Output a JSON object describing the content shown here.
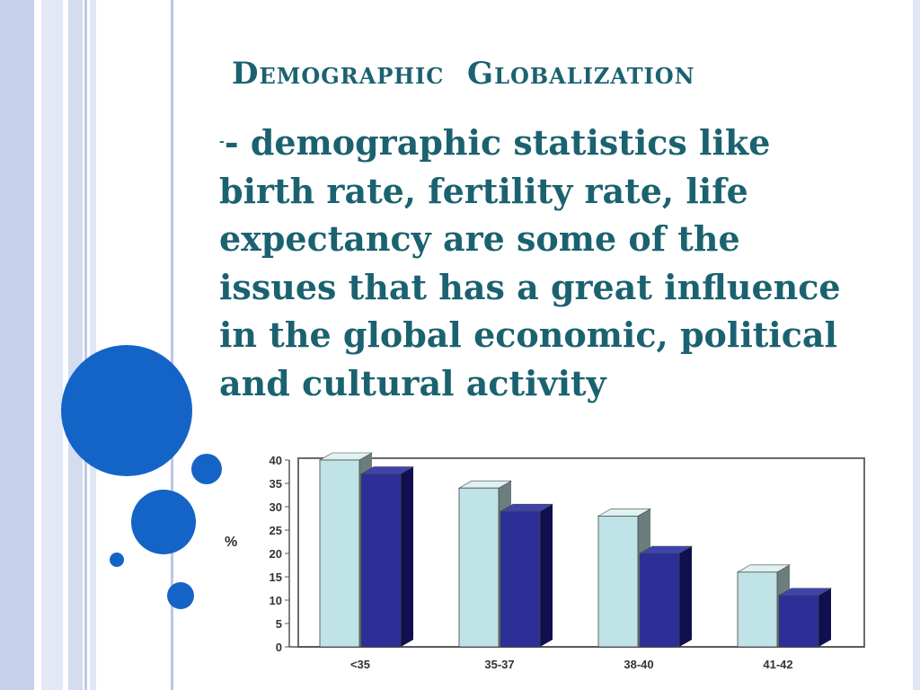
{
  "slide": {
    "title": "Demographic  Globalization",
    "body_lead": "-",
    "body_text": "- demographic statistics like birth rate, fertility rate, life expectancy are some of the issues that has a great influence in the global economic, political and cultural activity"
  },
  "colors": {
    "text": "#1b6270",
    "accent_circle": "#1464c8",
    "stripe_light": "#dfe6f6",
    "stripe_mid": "#c3cde9",
    "bar_light": "#bfe3e6",
    "bar_dark": "#2b2f97"
  },
  "chart_data": {
    "type": "bar",
    "categories": [
      "<35",
      "35-37",
      "38-40",
      "41-42"
    ],
    "series": [
      {
        "values": [
          40,
          34,
          28,
          16
        ]
      },
      {
        "values": [
          37,
          29,
          20,
          11
        ]
      }
    ],
    "ylabel": "%",
    "ylim": [
      0,
      40
    ],
    "yticks": [
      "0",
      "5",
      "10",
      "15",
      "20",
      "25",
      "30",
      "35",
      "40"
    ],
    "grid": false
  }
}
